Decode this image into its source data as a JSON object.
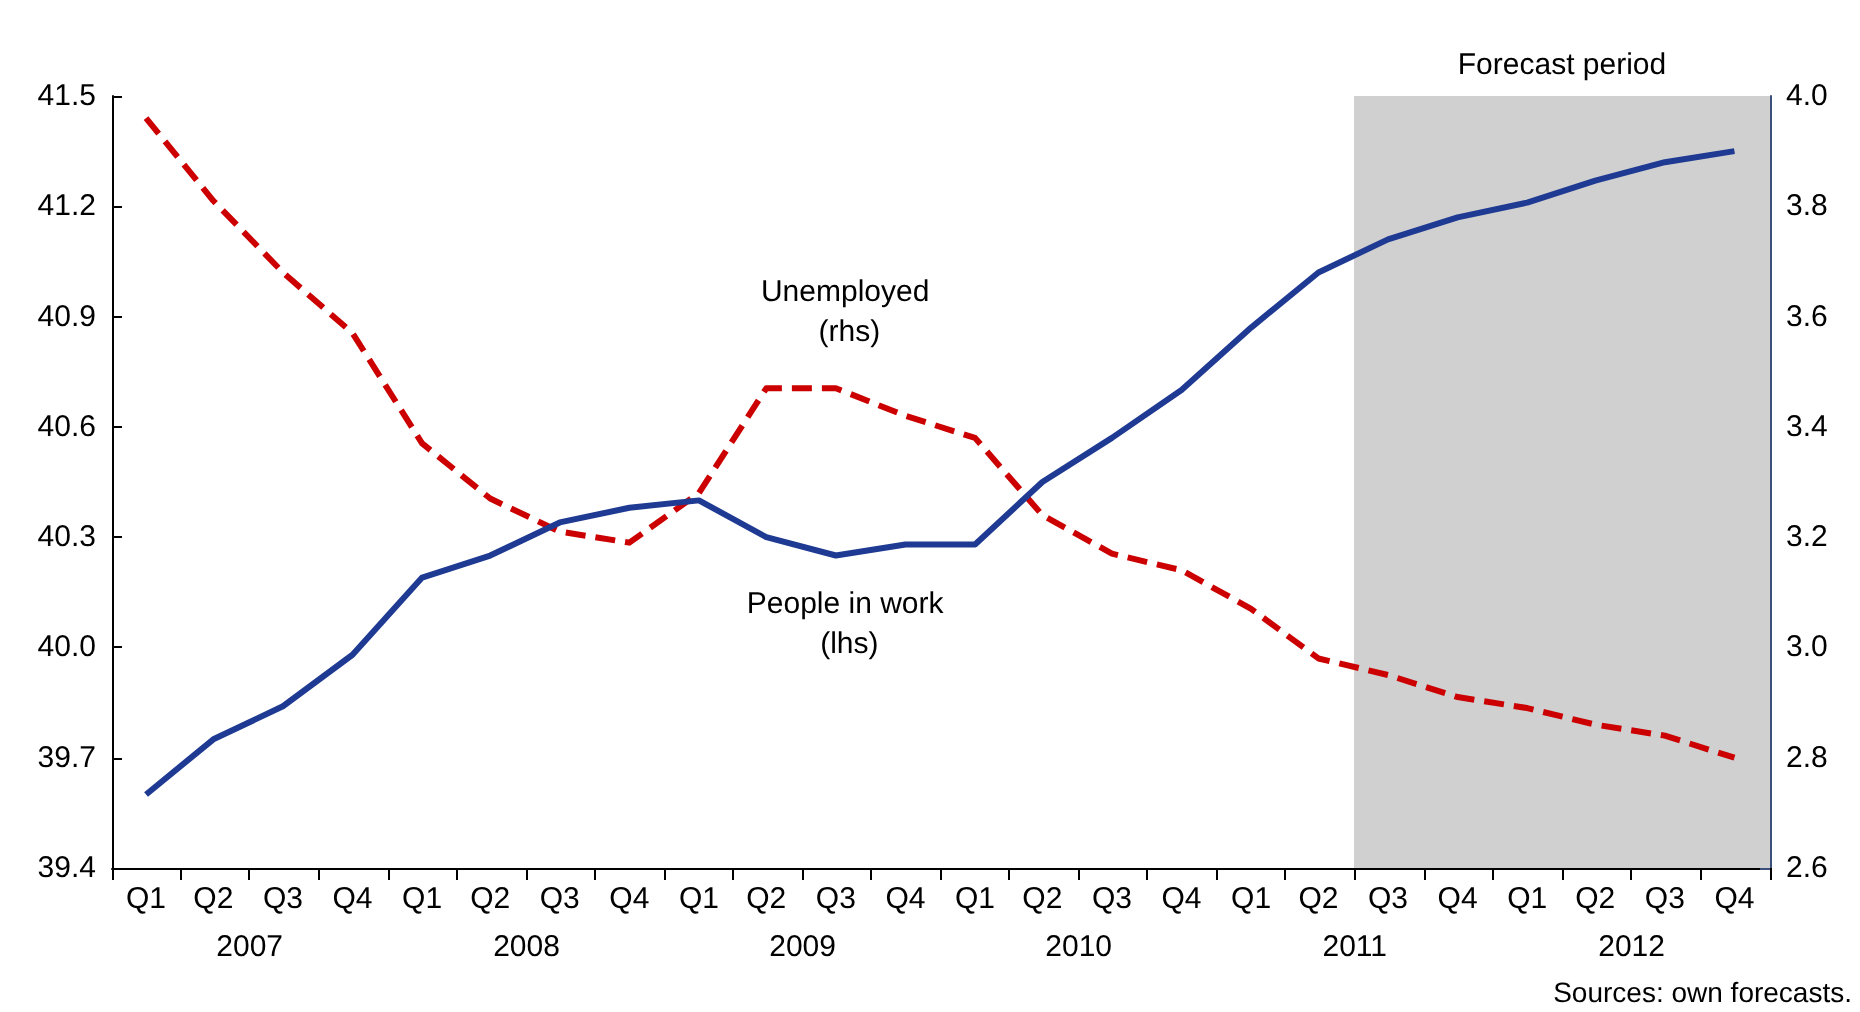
{
  "chart_data": {
    "type": "line",
    "x": [
      "2007-02-15",
      "2007-05-15",
      "2007-08-15",
      "2007-11-15",
      "2008-02-15",
      "2008-05-15",
      "2008-08-15",
      "2008-11-15",
      "2009-02-15",
      "2009-05-15",
      "2009-08-15",
      "2009-11-15",
      "2010-02-15",
      "2010-05-15",
      "2010-08-15",
      "2010-11-15",
      "2011-02-15",
      "2011-05-15",
      "2011-08-15",
      "2011-11-15",
      "2012-02-15",
      "2012-05-15",
      "2012-08-15",
      "2012-11-15"
    ],
    "series": [
      {
        "name": "Unemployed (rhs)",
        "color": "#cc0000",
        "axis": "y2",
        "line_style": "dashed",
        "values": [
          3.96,
          3.81,
          3.68,
          3.57,
          3.37,
          3.27,
          3.21,
          3.19,
          3.28,
          3.47,
          3.47,
          3.42,
          3.38,
          3.24,
          3.17,
          3.14,
          3.07,
          2.98,
          2.95,
          2.91,
          2.89,
          2.86,
          2.84,
          2.8
        ]
      },
      {
        "name": "People in work (lhs)",
        "color": "#1f3a93",
        "line_style": "solid",
        "values": [
          39.6,
          39.75,
          39.84,
          39.98,
          40.19,
          40.25,
          40.34,
          40.38,
          40.4,
          40.3,
          40.25,
          40.28,
          40.28,
          40.45,
          40.57,
          40.7,
          40.87,
          41.02,
          41.11,
          41.17,
          41.21,
          41.27,
          41.32,
          41.35
        ]
      }
    ],
    "xlim": [
      "2007-01-01",
      "2013-01-01"
    ],
    "xticks": [
      {
        "value": "2007-01-01",
        "label": null
      },
      {
        "value": "2007-04-01",
        "label": null
      },
      {
        "value": "2007-07-01",
        "label": null
      },
      {
        "value": "2007-10-01",
        "label": null
      },
      {
        "value": "2008-01-01",
        "label": null
      },
      {
        "value": "2008-04-01",
        "label": null
      },
      {
        "value": "2008-07-01",
        "label": null
      },
      {
        "value": "2008-10-01",
        "label": null
      },
      {
        "value": "2009-01-01",
        "label": null
      },
      {
        "value": "2009-04-01",
        "label": null
      },
      {
        "value": "2009-07-01",
        "label": null
      },
      {
        "value": "2009-10-01",
        "label": null
      },
      {
        "value": "2010-01-01",
        "label": null
      },
      {
        "value": "2010-04-01",
        "label": null
      },
      {
        "value": "2010-07-01",
        "label": null
      },
      {
        "value": "2010-10-01",
        "label": null
      },
      {
        "value": "2011-01-01",
        "label": null
      },
      {
        "value": "2011-04-01",
        "label": null
      },
      {
        "value": "2011-07-01",
        "label": null
      },
      {
        "value": "2011-10-01",
        "label": null
      },
      {
        "value": "2012-01-01",
        "label": null
      },
      {
        "value": "2012-04-01",
        "label": null
      },
      {
        "value": "2012-07-01",
        "label": null
      },
      {
        "value": "2012-10-01",
        "label": null
      },
      {
        "value": "2013-01-01",
        "label": null
      },
      {
        "value": "2007-02-15",
        "label": "Q1"
      },
      {
        "value": "2007-05-15",
        "label": "Q2"
      },
      {
        "value": "2007-08-15",
        "label": "Q3"
      },
      {
        "value": "2007-11-15",
        "label": "Q4"
      },
      {
        "value": "2008-02-15",
        "label": "Q1"
      },
      {
        "value": "2008-05-15",
        "label": "Q2"
      },
      {
        "value": "2008-08-15",
        "label": "Q3"
      },
      {
        "value": "2008-11-15",
        "label": "Q4"
      },
      {
        "value": "2009-02-15",
        "label": "Q1"
      },
      {
        "value": "2009-05-15",
        "label": "Q2"
      },
      {
        "value": "2009-08-15",
        "label": "Q3"
      },
      {
        "value": "2009-11-15",
        "label": "Q4"
      },
      {
        "value": "2010-02-15",
        "label": "Q1"
      },
      {
        "value": "2010-05-15",
        "label": "Q2"
      },
      {
        "value": "2010-08-15",
        "label": "Q3"
      },
      {
        "value": "2010-11-15",
        "label": "Q4"
      },
      {
        "value": "2011-02-15",
        "label": "Q1"
      },
      {
        "value": "2011-05-15",
        "label": "Q2"
      },
      {
        "value": "2011-08-15",
        "label": "Q3"
      },
      {
        "value": "2011-11-15",
        "label": "Q4"
      },
      {
        "value": "2012-02-15",
        "label": "Q1"
      },
      {
        "value": "2012-05-15",
        "label": "Q2"
      },
      {
        "value": "2012-08-15",
        "label": "Q3"
      },
      {
        "value": "2012-11-15",
        "label": "Q4"
      }
    ],
    "x2lim": [
      "2007-01-01",
      "2013-01-01"
    ],
    "x2ticks": [
      {
        "value": "2007-07-02",
        "label": "2007"
      },
      {
        "value": "2008-07-02",
        "label": "2008"
      },
      {
        "value": "2009-07-02",
        "label": "2009"
      },
      {
        "value": "2010-07-02",
        "label": "2010"
      },
      {
        "value": "2011-07-02",
        "label": "2011"
      },
      {
        "value": "2012-07-02",
        "label": "2012"
      }
    ],
    "ylim": [
      39.4,
      41.5
    ],
    "yticks": [
      39.4,
      39.7,
      {
        "value": 40,
        "label": "40.0"
      },
      40.3,
      40.6,
      40.9,
      41.2,
      41.5
    ],
    "y2lim": [
      2.6,
      4.0
    ],
    "y2ticks": [
      2.6,
      2.8,
      {
        "value": 3,
        "label": "3.0"
      },
      3.2,
      3.4,
      3.6,
      3.8,
      {
        "value": 4,
        "label": "4.0"
      }
    ],
    "bands": [
      {
        "axis": "x",
        "from": "2011-07-01",
        "to": "2013-01-01",
        "label": "Forecast period",
        "color": "#d0d0d0"
      }
    ],
    "annotations": [
      "Sources: own forecasts."
    ],
    "marker": "none",
    "grid": false,
    "legend": false
  }
}
